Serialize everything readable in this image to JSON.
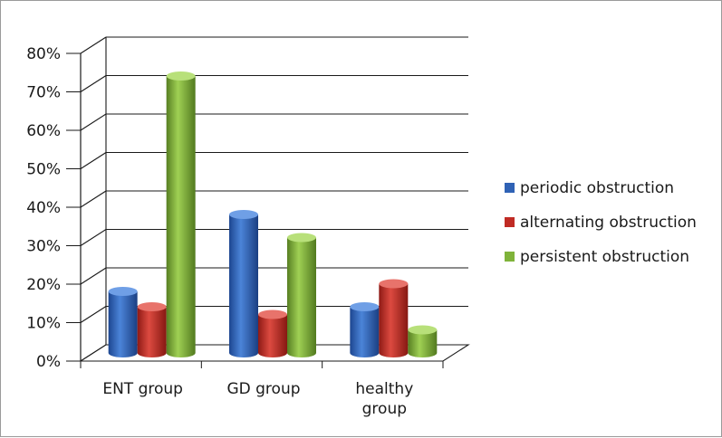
{
  "chart_data": {
    "type": "bar",
    "style": "3d-cylinder",
    "categories": [
      [
        "ENT group"
      ],
      [
        "GD group"
      ],
      [
        "healthy",
        "group"
      ]
    ],
    "series": [
      {
        "name": "periodic obstruction",
        "values": [
          16,
          36,
          12
        ],
        "color": "#2f62b5"
      },
      {
        "name": "alternating obstruction",
        "values": [
          12,
          10,
          18
        ],
        "color": "#c02b24"
      },
      {
        "name": "persistent obstruction",
        "values": [
          72,
          30,
          6
        ],
        "color": "#7fb33a"
      }
    ],
    "y_ticks": [
      "0%",
      "10%",
      "20%",
      "30%",
      "40%",
      "50%",
      "60%",
      "70%",
      "80%"
    ],
    "ylim": [
      0,
      80
    ],
    "grid": true,
    "legend_position": "right",
    "title": "",
    "xlabel": "",
    "ylabel": ""
  }
}
